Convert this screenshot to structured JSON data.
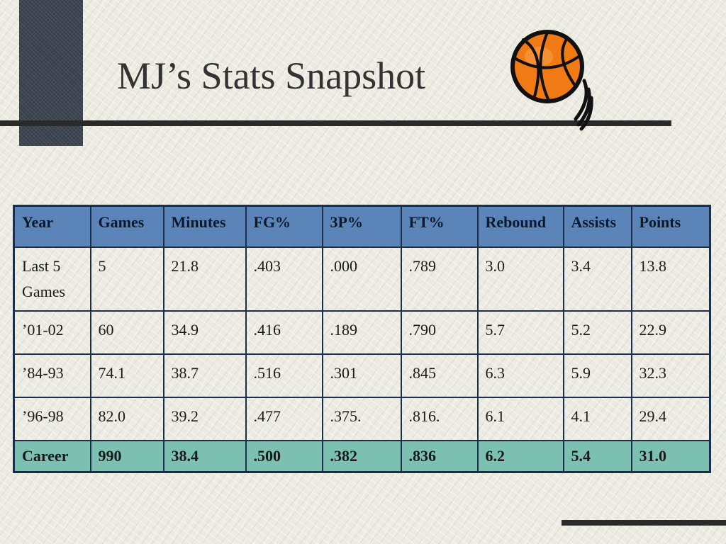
{
  "slide": {
    "title": "MJ’s Stats Snapshot"
  },
  "icons": {
    "decoration": "basketball-icon"
  },
  "colors": {
    "header_fill": "#5b84b8",
    "career_fill": "#7cc0b2",
    "ball_orange": "#f07a13"
  },
  "table": {
    "headers": [
      "Year",
      "Games",
      "Minutes",
      "FG%",
      "3P%",
      "FT%",
      "Rebound",
      "Assists",
      "Points"
    ],
    "rows": [
      [
        "Last 5 Games",
        "5",
        "21.8",
        ".403",
        ".000",
        ".789",
        "3.0",
        "3.4",
        "13.8"
      ],
      [
        "’01-02",
        "60",
        "34.9",
        ".416",
        ".189",
        ".790",
        "5.7",
        "5.2",
        "22.9"
      ],
      [
        "’84-93",
        "74.1",
        "38.7",
        ".516",
        ".301",
        ".845",
        "6.3",
        "5.9",
        "32.3"
      ],
      [
        "’96-98",
        "82.0",
        "39.2",
        ".477",
        ".375.",
        ".816.",
        "6.1",
        "4.1",
        "29.4"
      ]
    ],
    "career": [
      "Career",
      "990",
      "38.4",
      ".500",
      ".382",
      ".836",
      "6.2",
      "5.4",
      "31.0"
    ]
  }
}
